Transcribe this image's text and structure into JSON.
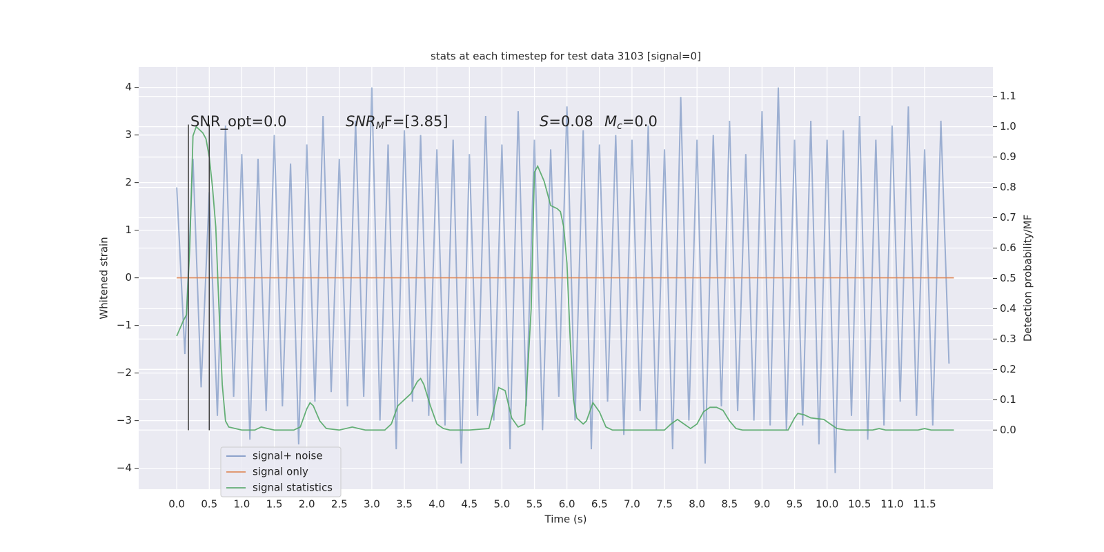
{
  "chart_data": {
    "type": "line",
    "title": "stats at each timestep for test data 3103 [signal=0]",
    "xlabel": "Time (s)",
    "ylabel": "Whitened strain",
    "y2label": "Detection probability/MF",
    "xlim": [
      -0.585,
      12.55
    ],
    "ylim": [
      -4.44,
      4.43
    ],
    "y2lim": [
      -0.195,
      1.197
    ],
    "grid": true,
    "legend": "lower left",
    "xticks": [
      {
        "value": 0,
        "label": "0.0"
      },
      0.5,
      {
        "value": 1,
        "label": "1.0"
      },
      1.5,
      {
        "value": 2,
        "label": "2.0"
      },
      2.5,
      {
        "value": 3,
        "label": "3.0"
      },
      3.5,
      {
        "value": 4,
        "label": "4.0"
      },
      4.5,
      {
        "value": 5,
        "label": "5.0"
      },
      5.5,
      {
        "value": 6,
        "label": "6.0"
      },
      6.5,
      {
        "value": 7,
        "label": "7.0"
      },
      7.5,
      {
        "value": 8,
        "label": "8.0"
      },
      8.5,
      {
        "value": 9,
        "label": "9.0"
      },
      9.5,
      {
        "value": 10,
        "label": "10.0"
      },
      10.5,
      {
        "value": 11,
        "label": "11.0"
      },
      11.5
    ],
    "yticks": [
      {
        "value": -4,
        "label": "−4"
      },
      {
        "value": -3,
        "label": "−3"
      },
      {
        "value": -2,
        "label": "−2"
      },
      {
        "value": -1,
        "label": "−1"
      },
      0,
      1,
      2,
      3,
      4
    ],
    "y2ticks": [
      {
        "value": 0,
        "label": "0.0"
      },
      0.1,
      0.2,
      0.3,
      0.4,
      0.5,
      0.6,
      0.7,
      0.8,
      0.9,
      {
        "value": 1,
        "label": "1.0"
      },
      1.1
    ],
    "series": [
      {
        "name": "signal+ noise",
        "color": "#4c72b0",
        "x": [
          0,
          0.125,
          0.25,
          0.375,
          0.5,
          0.625,
          0.75,
          0.875,
          1,
          1.125,
          1.25,
          1.375,
          1.5,
          1.625,
          1.75,
          1.875,
          2,
          2.125,
          2.25,
          2.375,
          2.5,
          2.625,
          2.75,
          2.875,
          3,
          3.125,
          3.25,
          3.375,
          3.5,
          3.625,
          3.75,
          3.875,
          4,
          4.125,
          4.25,
          4.375,
          4.5,
          4.625,
          4.75,
          4.875,
          5,
          5.125,
          5.25,
          5.375,
          5.5,
          5.625,
          5.75,
          5.875,
          6,
          6.125,
          6.25,
          6.375,
          6.5,
          6.625,
          6.75,
          6.875,
          7,
          7.125,
          7.25,
          7.375,
          7.5,
          7.625,
          7.75,
          7.875,
          8,
          8.125,
          8.25,
          8.375,
          8.5,
          8.625,
          8.75,
          8.875,
          9,
          9.125,
          9.25,
          9.375,
          9.5,
          9.625,
          9.75,
          9.875,
          10,
          10.125,
          10.25,
          10.375,
          10.5,
          10.625,
          10.75,
          10.875,
          11,
          11.125,
          11.25,
          11.375,
          11.5,
          11.625,
          11.75,
          11.875
        ],
        "values": [
          1.9,
          -1.6,
          2.5,
          -2.3,
          1.8,
          -2.9,
          3.2,
          -2.5,
          2.6,
          -3.4,
          2.5,
          -2.8,
          3.0,
          -2.7,
          2.4,
          -3.5,
          2.8,
          -2.6,
          3.4,
          -2.4,
          2.5,
          -2.7,
          3.3,
          -2.5,
          4.0,
          -3.0,
          2.8,
          -3.6,
          3.1,
          -2.6,
          3.0,
          -2.9,
          2.7,
          -3.1,
          2.9,
          -3.9,
          2.6,
          -2.9,
          3.4,
          -3.0,
          2.8,
          -3.6,
          3.5,
          -2.7,
          2.9,
          -3.2,
          2.7,
          -2.5,
          3.6,
          -3.0,
          3.1,
          -3.6,
          2.8,
          -2.6,
          3.0,
          -3.3,
          2.9,
          -2.8,
          3.2,
          -3.2,
          2.7,
          -3.6,
          3.8,
          -3.0,
          2.9,
          -3.9,
          3.0,
          -2.7,
          3.3,
          -2.8,
          2.6,
          -3.0,
          3.5,
          -3.1,
          4.0,
          -3.2,
          2.9,
          -3.1,
          3.3,
          -3.5,
          2.9,
          -4.1,
          3.1,
          -2.9,
          3.4,
          -3.4,
          2.9,
          -3.1,
          3.2,
          -2.6,
          3.6,
          -2.9,
          2.7,
          -3.1,
          3.3,
          -1.8
        ]
      },
      {
        "name": "signal only",
        "color": "#dd8452",
        "x": [
          0,
          11.95
        ],
        "values": [
          0,
          0
        ]
      },
      {
        "name": "signal statistics",
        "color": "#55a868",
        "axis": "y2",
        "x": [
          0,
          0.1,
          0.15,
          0.2,
          0.25,
          0.3,
          0.4,
          0.45,
          0.5,
          0.55,
          0.6,
          0.65,
          0.7,
          0.75,
          0.8,
          1.0,
          1.2,
          1.3,
          1.4,
          1.5,
          1.8,
          1.9,
          2.0,
          2.05,
          2.1,
          2.2,
          2.3,
          2.5,
          2.7,
          2.8,
          2.9,
          3.2,
          3.3,
          3.4,
          3.5,
          3.6,
          3.7,
          3.75,
          3.8,
          3.9,
          4.0,
          4.1,
          4.2,
          4.5,
          4.8,
          4.9,
          4.95,
          5.05,
          5.15,
          5.25,
          5.35,
          5.45,
          5.5,
          5.55,
          5.65,
          5.75,
          5.85,
          5.9,
          5.95,
          6.0,
          6.05,
          6.1,
          6.15,
          6.25,
          6.3,
          6.4,
          6.5,
          6.6,
          6.7,
          7.5,
          7.6,
          7.7,
          7.8,
          7.9,
          8.0,
          8.1,
          8.2,
          8.3,
          8.4,
          8.5,
          8.6,
          8.7,
          9.4,
          9.5,
          9.55,
          9.65,
          9.75,
          9.95,
          10.05,
          10.15,
          10.3,
          10.7,
          10.8,
          10.9,
          11.4,
          11.5,
          11.6,
          11.95
        ],
        "values": [
          0.31,
          0.36,
          0.38,
          0.6,
          0.97,
          1.0,
          0.98,
          0.96,
          0.9,
          0.8,
          0.67,
          0.4,
          0.15,
          0.03,
          0.01,
          0.0,
          0.0,
          0.01,
          0.005,
          0.0,
          0.0,
          0.01,
          0.07,
          0.09,
          0.08,
          0.03,
          0.005,
          0.0,
          0.01,
          0.005,
          0.0,
          0.0,
          0.02,
          0.08,
          0.1,
          0.12,
          0.16,
          0.17,
          0.15,
          0.08,
          0.02,
          0.005,
          0.0,
          0.0,
          0.005,
          0.09,
          0.14,
          0.13,
          0.04,
          0.01,
          0.02,
          0.4,
          0.85,
          0.87,
          0.82,
          0.74,
          0.73,
          0.72,
          0.67,
          0.55,
          0.3,
          0.1,
          0.04,
          0.02,
          0.03,
          0.09,
          0.06,
          0.01,
          0.0,
          0.0,
          0.02,
          0.035,
          0.02,
          0.005,
          0.02,
          0.06,
          0.075,
          0.075,
          0.065,
          0.03,
          0.005,
          0.0,
          0.0,
          0.04,
          0.055,
          0.05,
          0.04,
          0.035,
          0.02,
          0.005,
          0.0,
          0.0,
          0.005,
          0.0,
          0.0,
          0.005,
          0.0,
          0.0
        ]
      }
    ],
    "vlines": {
      "x": [
        0.18,
        0.5
      ],
      "ymin": -3.2,
      "ymax": 3.22,
      "color": "#404040"
    },
    "annotations": [
      {
        "text": "SNR_opt=0.0"
      },
      {
        "italic": "SNR",
        "sub": "M",
        "text": "F=[3.85]"
      },
      {
        "italic": "S",
        "text": "=0.08"
      },
      {
        "italic": "M",
        "sub": "c",
        "text": "=0.0"
      }
    ]
  }
}
